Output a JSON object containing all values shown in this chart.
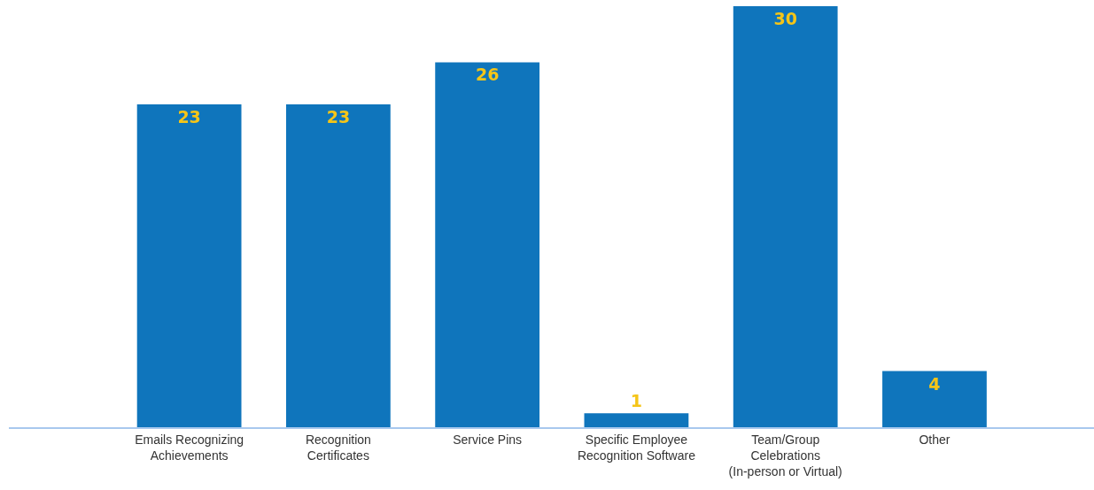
{
  "chart_data": {
    "type": "bar",
    "categories": [
      "Emails Recognizing Achievements",
      "Recognition Certificates",
      "Service Pins",
      "Specific Employee Recognition Software",
      "Team/Group Celebrations (In-person or Virtual)",
      "Other"
    ],
    "values": [
      23,
      23,
      26,
      1,
      30,
      4
    ],
    "color": "#0f75bc",
    "data_labels": true
  }
}
